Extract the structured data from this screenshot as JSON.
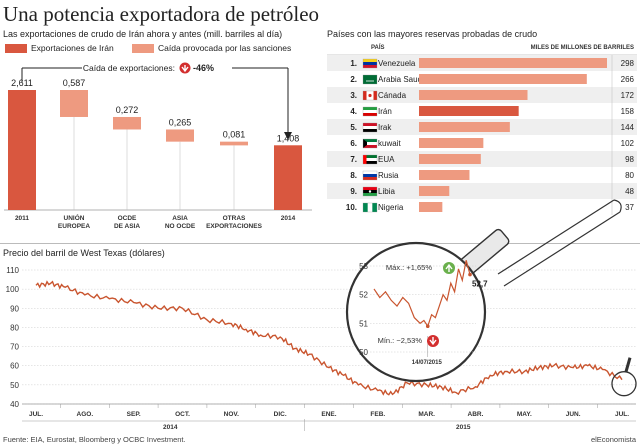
{
  "title": "Una potencia exportadora de petróleo",
  "source": "Fuente: EIA, Eurostat, Bloomberg y OCBC Investment.",
  "brand": "elEconomista",
  "colors": {
    "dark": "#d9573f",
    "light": "#ee9a80",
    "line": "#c9552f",
    "green": "#6ab04c",
    "red": "#d32f2f"
  },
  "chart_data": [
    {
      "type": "bar",
      "title": "Las exportaciones de crudo de Irán ahora y antes (mill. barriles al día)",
      "legend": [
        "Exportaciones de Irán",
        "Caída provocada por las sanciones"
      ],
      "annotation": "Caída de exportaciones:",
      "change": "-46%",
      "categories": [
        "2011",
        "UNIÓN EUROPEA",
        "OCDE DE ASIA",
        "ASIA NO OCDE",
        "OTRAS EXPORTACIONES",
        "2014"
      ],
      "labels": [
        "2,611",
        "0,587",
        "0,272",
        "0,265",
        "0,081",
        "1,408"
      ],
      "values": [
        2.611,
        0.587,
        0.272,
        0.265,
        0.081,
        1.408
      ]
    },
    {
      "type": "bar",
      "title": "Países con las mayores reservas probadas de crudo",
      "header_country": "PAÍS",
      "header_value": "MILES DE MILLONES DE BARRILES",
      "rows": [
        {
          "rank": "1.",
          "country": "Venezuela",
          "value": 298,
          "flag": "venezuela-flag-icon"
        },
        {
          "rank": "2.",
          "country": "Arabia Saudí",
          "value": 266,
          "flag": "saudi-arabia-flag-icon"
        },
        {
          "rank": "3.",
          "country": "Cánada",
          "value": 172,
          "flag": "canada-flag-icon"
        },
        {
          "rank": "4.",
          "country": "Irán",
          "value": 158,
          "flag": "iran-flag-icon"
        },
        {
          "rank": "5.",
          "country": "Irak",
          "value": 144,
          "flag": "iraq-flag-icon"
        },
        {
          "rank": "6.",
          "country": "kuwait",
          "value": 102,
          "flag": "kuwait-flag-icon"
        },
        {
          "rank": "7.",
          "country": "EUA",
          "value": 98,
          "flag": "uae-flag-icon"
        },
        {
          "rank": "8.",
          "country": "Rusia",
          "value": 80,
          "flag": "russia-flag-icon"
        },
        {
          "rank": "9.",
          "country": "Libia",
          "value": 48,
          "flag": "libya-flag-icon"
        },
        {
          "rank": "10.",
          "country": "Nigeria",
          "value": 37,
          "flag": "nigeria-flag-icon"
        }
      ]
    },
    {
      "type": "line",
      "title": "Precio del barril de West Texas (dólares)",
      "ylim": [
        40,
        110
      ],
      "yticks": [
        40,
        50,
        60,
        70,
        80,
        90,
        100,
        110
      ],
      "months": [
        "JUL.",
        "AGO.",
        "SEP.",
        "OCT.",
        "NOV.",
        "DIC.",
        "ENE.",
        "FEB.",
        "MAR.",
        "ABR.",
        "MAY.",
        "JUN.",
        "JUL."
      ],
      "years": [
        "2014",
        "2015"
      ],
      "x": [
        0,
        0.3,
        0.6,
        1,
        1.5,
        2,
        2.5,
        3,
        3.5,
        4,
        4.3,
        4.6,
        5,
        5.3,
        5.6,
        6,
        6.3,
        6.6,
        7,
        7.3,
        7.6,
        8,
        8.3,
        8.6,
        9,
        9.3,
        9.6,
        10,
        10.3,
        10.6,
        11,
        11.3,
        11.6,
        12.0
      ],
      "y": [
        102,
        103,
        101,
        97,
        95,
        93,
        90,
        90,
        84,
        82,
        79,
        76,
        75,
        69,
        66,
        59,
        55,
        50,
        47,
        45,
        51,
        50,
        49,
        46,
        49,
        55,
        57,
        57,
        59,
        60,
        59,
        60,
        58,
        52.7
      ],
      "inset": {
        "ylim": [
          50,
          53
        ],
        "yticks": [
          50,
          51,
          52,
          53
        ],
        "x": [
          0,
          0.06,
          0.12,
          0.18,
          0.24,
          0.3,
          0.36,
          0.42,
          0.48,
          0.52,
          0.56,
          0.6,
          0.64,
          0.68,
          0.72,
          0.76,
          0.8,
          0.84,
          0.88,
          0.92,
          0.96,
          1.0
        ],
        "y": [
          52.2,
          51.9,
          52.1,
          51.8,
          51.6,
          51.9,
          51.7,
          51.2,
          51.0,
          51.1,
          50.9,
          51.3,
          51.2,
          51.6,
          52.0,
          51.8,
          52.4,
          52.1,
          52.9,
          52.5,
          53.2,
          52.7
        ],
        "max_label": "Máx.: +1,65%",
        "min_label": "Mín.: −2,53%",
        "date_label": "14/07/2015",
        "last_label": "52,7"
      }
    }
  ]
}
